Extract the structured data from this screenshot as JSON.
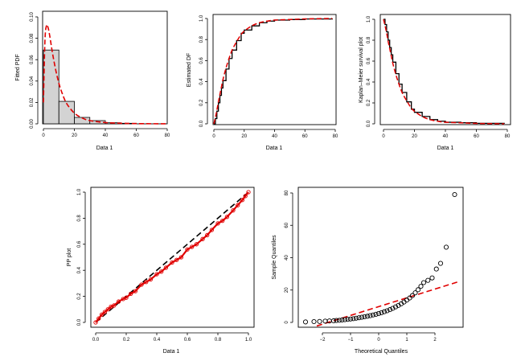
{
  "chart_data": [
    {
      "id": "hist",
      "type": "bar",
      "title": "",
      "xlabel": "Data 1",
      "ylabel": "Fitted PDF",
      "xlim": [
        0,
        80
      ],
      "ylim": [
        0,
        0.1
      ],
      "x_ticks": [
        0,
        20,
        40,
        60,
        80
      ],
      "y_ticks": [
        "0.00",
        "0.02",
        "0.04",
        "0.06",
        "0.08",
        "0.10"
      ],
      "bins": [
        {
          "from": 0,
          "to": 10,
          "density": 0.069
        },
        {
          "from": 10,
          "to": 20,
          "density": 0.021
        },
        {
          "from": 20,
          "to": 30,
          "density": 0.006
        },
        {
          "from": 30,
          "to": 40,
          "density": 0.003
        },
        {
          "from": 40,
          "to": 50,
          "density": 0.001
        },
        {
          "from": 50,
          "to": 60,
          "density": 0.0005
        }
      ],
      "series": [
        {
          "style": "dashed",
          "color": "#e00000",
          "x": [
            0,
            1,
            2,
            3,
            4,
            5,
            6,
            8,
            10,
            12,
            15,
            20,
            25,
            30,
            40,
            50,
            60,
            70,
            80
          ],
          "y": [
            0.02,
            0.078,
            0.092,
            0.09,
            0.083,
            0.074,
            0.065,
            0.05,
            0.038,
            0.029,
            0.019,
            0.01,
            0.0055,
            0.003,
            0.0012,
            0.0005,
            0.0002,
            0.0001,
            5e-05
          ]
        }
      ]
    },
    {
      "id": "cdf",
      "type": "line",
      "title": "",
      "xlabel": "Data 1",
      "ylabel": "Estimated DF",
      "xlim": [
        0,
        80
      ],
      "ylim": [
        0,
        1
      ],
      "x_ticks": [
        0,
        20,
        40,
        60,
        80
      ],
      "y_ticks": [
        "0.0",
        "0.2",
        "0.4",
        "0.6",
        "0.8",
        "1.0"
      ],
      "series": [
        {
          "style": "step",
          "color": "#000000",
          "x": [
            0,
            1,
            2,
            3,
            4,
            5,
            6,
            8,
            10,
            12,
            15,
            18,
            20,
            25,
            30,
            35,
            40,
            50,
            60,
            78
          ],
          "y": [
            0.0,
            0.05,
            0.12,
            0.2,
            0.27,
            0.34,
            0.41,
            0.52,
            0.62,
            0.7,
            0.79,
            0.86,
            0.89,
            0.93,
            0.96,
            0.975,
            0.985,
            0.99,
            0.995,
            1.0
          ]
        },
        {
          "style": "dashed",
          "color": "#e00000",
          "x": [
            0,
            1,
            2,
            3,
            4,
            5,
            6,
            8,
            10,
            12,
            15,
            18,
            20,
            25,
            30,
            35,
            40,
            50,
            60,
            78
          ],
          "y": [
            0.0,
            0.06,
            0.13,
            0.21,
            0.28,
            0.35,
            0.42,
            0.53,
            0.62,
            0.7,
            0.78,
            0.85,
            0.88,
            0.93,
            0.96,
            0.975,
            0.985,
            0.99,
            0.996,
            1.0
          ]
        }
      ]
    },
    {
      "id": "km",
      "type": "line",
      "title": "",
      "xlabel": "Data 1",
      "ylabel": "Kaplan–Meier survival plot",
      "xlim": [
        0,
        80
      ],
      "ylim": [
        0,
        1
      ],
      "x_ticks": [
        0,
        20,
        40,
        60,
        80
      ],
      "y_ticks": [
        "0.0",
        "0.2",
        "0.4",
        "0.6",
        "0.8",
        "1.0"
      ],
      "series": [
        {
          "style": "step",
          "color": "#000000",
          "x": [
            0,
            1,
            2,
            3,
            4,
            5,
            6,
            8,
            10,
            12,
            15,
            18,
            20,
            25,
            30,
            35,
            40,
            50,
            60,
            78
          ],
          "y": [
            1.0,
            0.95,
            0.88,
            0.8,
            0.73,
            0.66,
            0.59,
            0.48,
            0.38,
            0.3,
            0.21,
            0.14,
            0.11,
            0.07,
            0.04,
            0.025,
            0.015,
            0.01,
            0.005,
            0.0
          ]
        },
        {
          "style": "dashed",
          "color": "#e00000",
          "x": [
            0,
            1,
            2,
            3,
            4,
            5,
            6,
            8,
            10,
            12,
            15,
            18,
            20,
            25,
            30,
            35,
            40,
            50,
            60,
            78
          ],
          "y": [
            1.0,
            0.94,
            0.87,
            0.79,
            0.72,
            0.65,
            0.58,
            0.47,
            0.38,
            0.3,
            0.22,
            0.15,
            0.12,
            0.07,
            0.04,
            0.025,
            0.015,
            0.01,
            0.004,
            0.0
          ]
        }
      ]
    },
    {
      "id": "pp",
      "type": "scatter",
      "title": "",
      "xlabel": "Data 1",
      "ylabel": "PP plot",
      "xlim": [
        0,
        1
      ],
      "ylim": [
        0,
        1
      ],
      "x_ticks": [
        "0.0",
        "0.2",
        "0.4",
        "0.6",
        "0.8",
        "1.0"
      ],
      "y_ticks": [
        "0.0",
        "0.2",
        "0.4",
        "0.6",
        "0.8",
        "1.0"
      ],
      "reference_line": {
        "style": "dashed",
        "color": "#000000",
        "from": [
          0,
          0
        ],
        "to": [
          1,
          1
        ]
      },
      "points_color": "#e00000",
      "series": [
        {
          "style": "points",
          "x": [
            0.0,
            0.02,
            0.04,
            0.06,
            0.08,
            0.1,
            0.12,
            0.15,
            0.18,
            0.2,
            0.23,
            0.26,
            0.3,
            0.33,
            0.36,
            0.4,
            0.43,
            0.46,
            0.5,
            0.53,
            0.56,
            0.6,
            0.63,
            0.66,
            0.7,
            0.73,
            0.76,
            0.8,
            0.83,
            0.86,
            0.9,
            0.93,
            0.96,
            0.98,
            1.0
          ],
          "y": [
            0.0,
            0.03,
            0.06,
            0.08,
            0.1,
            0.12,
            0.13,
            0.16,
            0.18,
            0.19,
            0.22,
            0.24,
            0.29,
            0.31,
            0.33,
            0.37,
            0.39,
            0.42,
            0.46,
            0.48,
            0.5,
            0.56,
            0.58,
            0.6,
            0.64,
            0.67,
            0.71,
            0.76,
            0.78,
            0.81,
            0.86,
            0.9,
            0.94,
            0.97,
            1.0
          ]
        }
      ]
    },
    {
      "id": "qq",
      "type": "scatter",
      "title": "",
      "xlabel": "Theoretical Quantiles",
      "ylabel": "Sample Quantiles",
      "xlim": [
        -2.9,
        2.9
      ],
      "ylim": [
        -2,
        82
      ],
      "x_ticks": [
        "−2",
        "−1",
        "0",
        "1",
        "2"
      ],
      "y_ticks": [
        "0",
        "20",
        "40",
        "60",
        "80"
      ],
      "reference_line": {
        "style": "dashed",
        "color": "#e00000",
        "from": [
          -2.2,
          -2.2
        ],
        "to": [
          2.9,
          25.5
        ]
      },
      "series": [
        {
          "style": "open-circles",
          "x": [
            -2.6,
            -2.3,
            -2.1,
            -1.9,
            -1.75,
            -1.6,
            -1.5,
            -1.4,
            -1.3,
            -1.2,
            -1.1,
            -1.0,
            -0.9,
            -0.8,
            -0.7,
            -0.6,
            -0.5,
            -0.4,
            -0.3,
            -0.2,
            -0.1,
            0.0,
            0.1,
            0.2,
            0.3,
            0.4,
            0.5,
            0.6,
            0.7,
            0.8,
            0.9,
            1.0,
            1.1,
            1.2,
            1.3,
            1.4,
            1.5,
            1.6,
            1.75,
            1.9,
            2.05,
            2.2,
            2.4,
            2.7
          ],
          "y": [
            0.3,
            0.5,
            0.6,
            0.8,
            0.9,
            1.0,
            1.2,
            1.3,
            1.5,
            1.7,
            1.9,
            2.1,
            2.3,
            2.6,
            2.9,
            3.2,
            3.5,
            3.8,
            4.2,
            4.6,
            5.0,
            5.5,
            6.0,
            6.6,
            7.2,
            7.9,
            8.7,
            9.6,
            10.5,
            11.5,
            12.6,
            13.8,
            15.1,
            16.6,
            18.3,
            20.2,
            22.3,
            24.6,
            26.0,
            27.5,
            33.0,
            36.5,
            46.5,
            79.0
          ]
        }
      ]
    }
  ]
}
